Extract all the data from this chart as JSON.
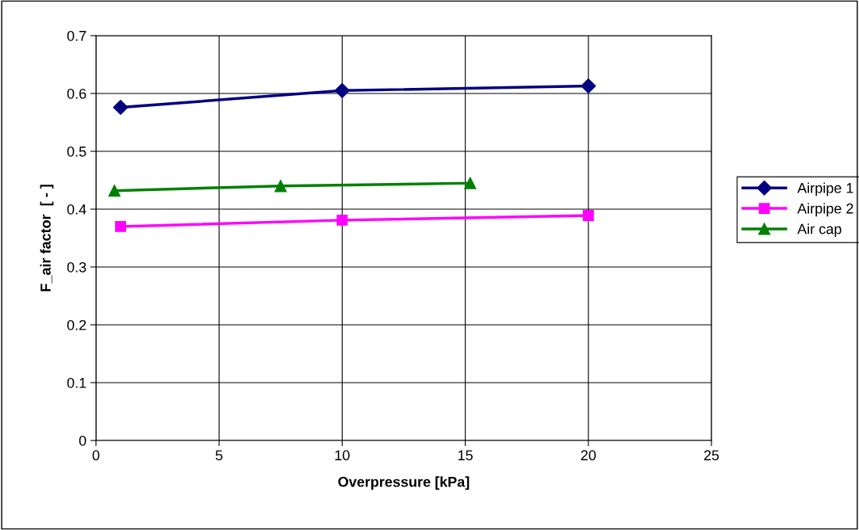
{
  "chart_data": {
    "type": "line",
    "xlabel": "Overpressure [kPa]",
    "ylabel": "F_air factor  [ - ]",
    "xlim": [
      0,
      25
    ],
    "xticks": [
      0,
      5,
      10,
      15,
      20,
      25
    ],
    "ylim": [
      0,
      0.7
    ],
    "yticks": [
      0,
      0.1,
      0.2,
      0.3,
      0.4,
      0.5,
      0.6,
      0.7
    ],
    "grid": true,
    "legend": "right",
    "line_style": "solid",
    "series": [
      {
        "name": "Airpipe 1",
        "color": "#000080",
        "marker": "diamond",
        "x": [
          1,
          10,
          20
        ],
        "values": [
          0.576,
          0.605,
          0.613
        ]
      },
      {
        "name": "Airpipe 2",
        "color": "#ff00ff",
        "marker": "square",
        "x": [
          1,
          10,
          20
        ],
        "values": [
          0.37,
          0.381,
          0.389
        ]
      },
      {
        "name": "Air cap",
        "color": "#008000",
        "marker": "triangle",
        "x": [
          0.75,
          7.5,
          15.2
        ],
        "values": [
          0.432,
          0.44,
          0.445
        ]
      }
    ]
  }
}
